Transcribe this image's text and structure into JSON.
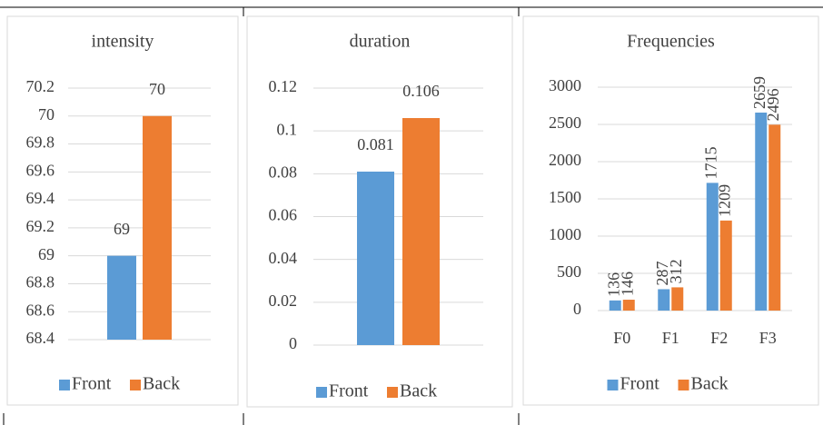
{
  "chart_data": [
    {
      "type": "bar",
      "title": "intensity",
      "categories": [
        null
      ],
      "series": [
        {
          "name": "Front",
          "color": "#5b9bd5",
          "values": [
            69
          ]
        },
        {
          "name": "Back",
          "color": "#ed7d31",
          "values": [
            70
          ]
        }
      ],
      "ylim": [
        68.4,
        70.2
      ],
      "yticks": [
        68.4,
        68.6,
        68.8,
        69,
        69.2,
        69.4,
        69.6,
        69.8,
        70,
        70.2
      ],
      "grid": true
    },
    {
      "type": "bar",
      "title": "duration",
      "categories": [
        null
      ],
      "series": [
        {
          "name": "Front",
          "color": "#5b9bd5",
          "values": [
            0.081
          ]
        },
        {
          "name": "Back",
          "color": "#ed7d31",
          "values": [
            0.106
          ]
        }
      ],
      "ylim": [
        0,
        0.12
      ],
      "yticks": [
        0,
        0.02,
        0.04,
        0.06,
        0.08,
        0.1,
        0.12
      ],
      "grid": true
    },
    {
      "type": "bar",
      "title": "Frequencies",
      "categories": [
        "F0",
        "F1",
        "F2",
        "F3"
      ],
      "series": [
        {
          "name": "Front",
          "color": "#5b9bd5",
          "values": [
            136,
            287,
            1715,
            2659
          ]
        },
        {
          "name": "Back",
          "color": "#ed7d31",
          "values": [
            146,
            312,
            1209,
            2496
          ]
        }
      ],
      "ylim": [
        0,
        3000
      ],
      "yticks": [
        0,
        500,
        1000,
        1500,
        2000,
        2500,
        3000
      ],
      "grid": true,
      "rotated_labels": true
    }
  ]
}
